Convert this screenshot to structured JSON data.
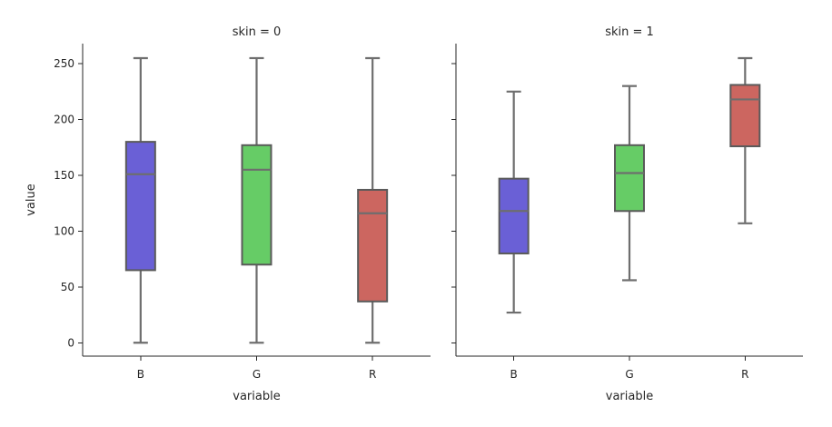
{
  "chart_data": {
    "type": "box",
    "xlabel": "variable",
    "ylabel": "value",
    "ylim": [
      -12,
      268
    ],
    "yticks": [
      0,
      50,
      100,
      150,
      200,
      250
    ],
    "categories": [
      "B",
      "G",
      "R"
    ],
    "colors": {
      "B": "#6a60d6",
      "G": "#66cc66",
      "R": "#cc6660"
    },
    "panels": [
      {
        "title": "skin = 0",
        "boxes": [
          {
            "category": "B",
            "min": 0,
            "q1": 65,
            "median": 151,
            "q3": 180,
            "max": 255
          },
          {
            "category": "G",
            "min": 0,
            "q1": 70,
            "median": 155,
            "q3": 177,
            "max": 255
          },
          {
            "category": "R",
            "min": 0,
            "q1": 37,
            "median": 116,
            "q3": 137,
            "max": 255
          }
        ]
      },
      {
        "title": "skin = 1",
        "boxes": [
          {
            "category": "B",
            "min": 27,
            "q1": 80,
            "median": 118,
            "q3": 147,
            "max": 225
          },
          {
            "category": "G",
            "min": 56,
            "q1": 118,
            "median": 152,
            "q3": 177,
            "max": 230
          },
          {
            "category": "R",
            "min": 107,
            "q1": 176,
            "median": 218,
            "q3": 231,
            "max": 255
          }
        ]
      }
    ]
  }
}
